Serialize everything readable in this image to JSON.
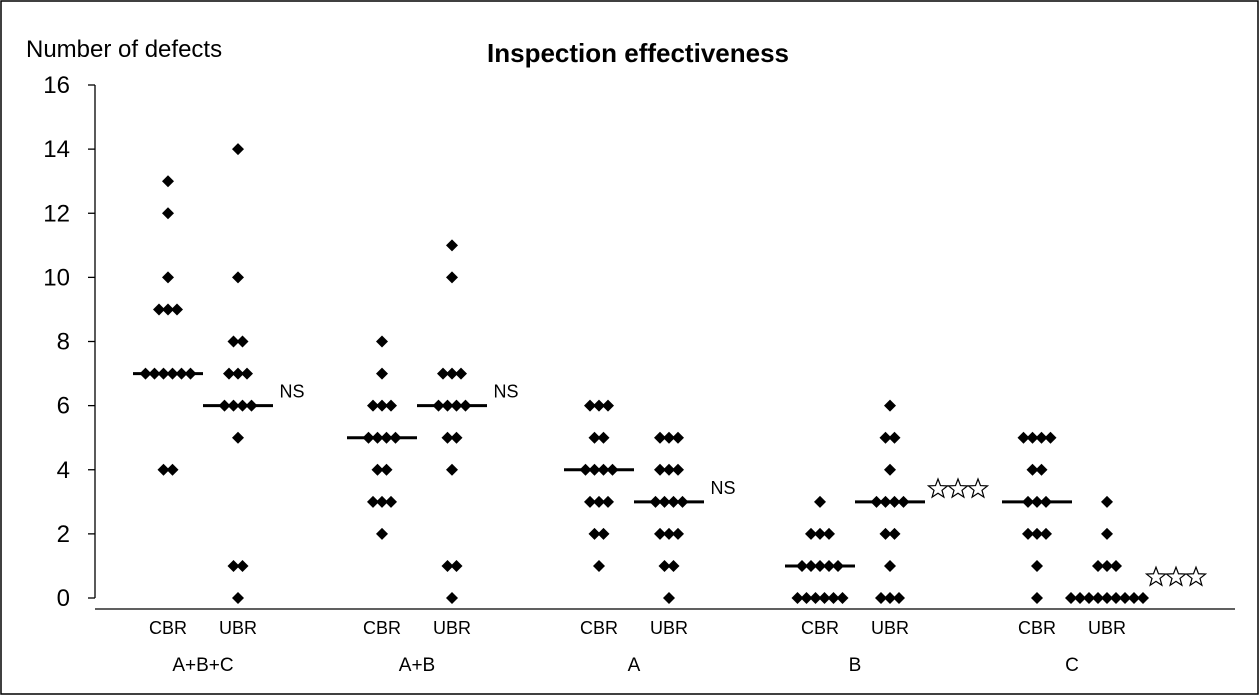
{
  "chart_data": {
    "type": "scatter",
    "title": "Inspection effectiveness",
    "ylabel": "Number of defects",
    "xlabel": "",
    "ylim": [
      0,
      16
    ],
    "yticks": [
      0,
      2,
      4,
      6,
      8,
      10,
      12,
      14,
      16
    ],
    "grid": false,
    "legend": "none",
    "groups": [
      {
        "label": "A+B+C",
        "significance": "NS",
        "series": [
          {
            "label": "CBR",
            "median": 7,
            "values": [
              13,
              12,
              10,
              9,
              9,
              9,
              7,
              7,
              7,
              7,
              7,
              7,
              4,
              4
            ]
          },
          {
            "label": "UBR",
            "median": 6,
            "values": [
              14,
              10,
              8,
              8,
              7,
              7,
              7,
              6,
              6,
              6,
              6,
              5,
              1,
              1,
              0
            ]
          }
        ]
      },
      {
        "label": "A+B",
        "significance": "NS",
        "series": [
          {
            "label": "CBR",
            "median": 5,
            "values": [
              8,
              7,
              6,
              6,
              6,
              5,
              5,
              5,
              5,
              4,
              4,
              3,
              3,
              3,
              2
            ]
          },
          {
            "label": "UBR",
            "median": 6,
            "values": [
              11,
              10,
              7,
              7,
              7,
              6,
              6,
              6,
              6,
              5,
              5,
              4,
              1,
              1,
              0
            ]
          }
        ]
      },
      {
        "label": "A",
        "significance": "NS",
        "series": [
          {
            "label": "CBR",
            "median": 4,
            "values": [
              6,
              6,
              6,
              5,
              5,
              4,
              4,
              4,
              4,
              3,
              3,
              3,
              2,
              2,
              1
            ]
          },
          {
            "label": "UBR",
            "median": 3,
            "values": [
              5,
              5,
              5,
              4,
              4,
              4,
              3,
              3,
              3,
              3,
              2,
              2,
              2,
              1,
              1,
              0
            ]
          }
        ]
      },
      {
        "label": "B",
        "significance": "☆☆☆",
        "series": [
          {
            "label": "CBR",
            "median": 1,
            "values": [
              3,
              2,
              2,
              2,
              1,
              1,
              1,
              1,
              1,
              0,
              0,
              0,
              0,
              0,
              0
            ]
          },
          {
            "label": "UBR",
            "median": 3,
            "values": [
              6,
              5,
              5,
              4,
              3,
              3,
              3,
              3,
              2,
              2,
              1,
              0,
              0,
              0
            ]
          }
        ]
      },
      {
        "label": "C",
        "significance": "☆☆☆",
        "series": [
          {
            "label": "CBR",
            "median": 3,
            "values": [
              5,
              5,
              5,
              5,
              4,
              4,
              3,
              3,
              3,
              2,
              2,
              2,
              1,
              0
            ]
          },
          {
            "label": "UBR",
            "median": 0,
            "values": [
              3,
              2,
              1,
              1,
              1,
              0,
              0,
              0,
              0,
              0,
              0,
              0,
              0,
              0
            ]
          }
        ]
      }
    ]
  }
}
